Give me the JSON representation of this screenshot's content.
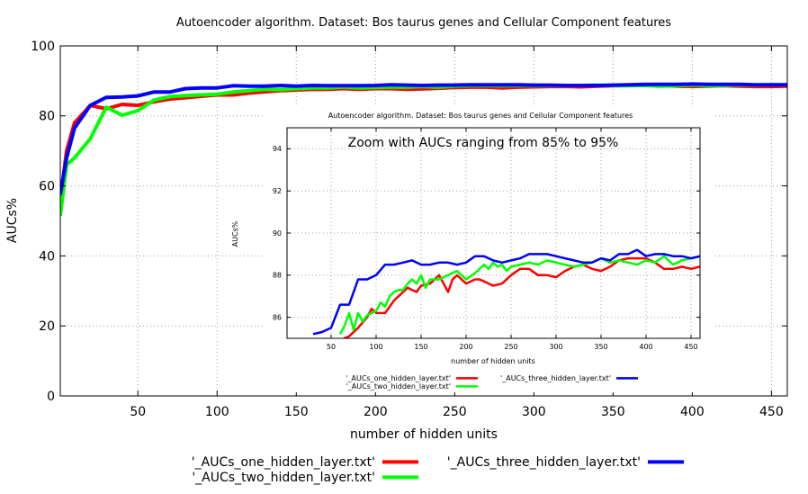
{
  "chart_data": [
    {
      "type": "line",
      "title": "Autoencoder algorithm. Dataset: Bos taurus genes and Cellular Component features",
      "xlabel": "number of hidden units",
      "ylabel": "AUCs%",
      "xlim": [
        1,
        460
      ],
      "ylim": [
        0,
        100
      ],
      "xticks": [
        50,
        100,
        150,
        200,
        250,
        300,
        350,
        400,
        450
      ],
      "yticks": [
        0,
        20,
        40,
        60,
        80,
        100
      ],
      "grid": true,
      "legend_position": "bottom",
      "x": [
        1,
        5,
        10,
        20,
        30,
        40,
        50,
        60,
        70,
        80,
        90,
        100,
        110,
        120,
        130,
        140,
        150,
        160,
        170,
        180,
        190,
        200,
        210,
        220,
        230,
        240,
        250,
        260,
        270,
        280,
        290,
        300,
        310,
        320,
        330,
        340,
        350,
        360,
        370,
        380,
        390,
        400,
        410,
        420,
        430,
        440,
        450,
        460
      ],
      "series": [
        {
          "name": "'_AUCs_one_hidden_layer.txt'",
          "color": "#ff0000",
          "values": [
            56,
            70,
            78,
            83,
            82,
            83.3,
            83,
            84,
            84.8,
            85.2,
            85.6,
            86,
            86,
            86.5,
            86.9,
            87.2,
            87.4,
            87.6,
            87.6,
            87.8,
            87.6,
            87.8,
            87.8,
            87.6,
            87.7,
            87.9,
            88.1,
            88.2,
            88.2,
            88.0,
            88.2,
            88.3,
            88.4,
            88.4,
            88.3,
            88.5,
            88.6,
            88.7,
            88.8,
            88.7,
            88.5,
            88.4,
            88.5,
            88.6,
            88.5,
            88.4,
            88.4,
            88.5
          ]
        },
        {
          "name": "'_AUCs_two_hidden_layer.txt'",
          "color": "#00ff00",
          "values": [
            51.5,
            66,
            68,
            73.5,
            82.5,
            80.2,
            81.5,
            84.5,
            85.5,
            85.8,
            86.0,
            86.2,
            86.8,
            87.2,
            87.6,
            87.5,
            87.8,
            88.0,
            88.0,
            88.2,
            88.0,
            88.1,
            88.2,
            88.2,
            88.4,
            88.2,
            88.5,
            88.6,
            88.7,
            88.6,
            88.7,
            88.6,
            88.7,
            88.6,
            88.7,
            88.8,
            88.7,
            88.6,
            88.7,
            88.5,
            88.6,
            88.8,
            88.6,
            88.7,
            88.9,
            88.8,
            88.9,
            88.9
          ]
        },
        {
          "name": "'_AUCs_three_hidden_layer.txt'",
          "color": "#0000ff",
          "values": [
            57.5,
            68,
            76.5,
            83,
            85.3,
            85.4,
            85.7,
            86.8,
            86.8,
            87.8,
            88.0,
            88.0,
            88.6,
            88.5,
            88.5,
            88.7,
            88.5,
            88.7,
            88.6,
            88.6,
            88.6,
            88.7,
            88.9,
            88.8,
            88.7,
            88.8,
            88.8,
            88.9,
            88.9,
            88.9,
            88.9,
            88.8,
            88.8,
            88.7,
            88.7,
            88.7,
            88.8,
            88.9,
            89.0,
            89.0,
            89.0,
            89.1,
            89.0,
            89.0,
            89.0,
            88.9,
            88.9,
            88.9
          ]
        }
      ]
    },
    {
      "type": "line",
      "title": "Autoencoder algorithm. Dataset: Bos taurus genes and Cellular Component features",
      "annotation": "Zoom with AUCs ranging from 85% to 95%",
      "xlabel": "number of hidden units",
      "ylabel": "AUCs%",
      "xlim": [
        1,
        460
      ],
      "ylim": [
        85,
        95
      ],
      "xticks": [
        50,
        100,
        150,
        200,
        250,
        300,
        350,
        400,
        450
      ],
      "yticks": [
        86,
        88,
        90,
        92,
        94
      ],
      "grid": true,
      "legend_position": "bottom",
      "series": [
        {
          "name": "'_AUCs_one_hidden_layer.txt'",
          "color": "#ff0000",
          "x": [
            60,
            70,
            80,
            90,
            95,
            100,
            105,
            110,
            115,
            120,
            125,
            130,
            135,
            140,
            145,
            150,
            160,
            170,
            175,
            180,
            185,
            190,
            200,
            210,
            215,
            220,
            230,
            240,
            250,
            260,
            270,
            280,
            290,
            300,
            310,
            320,
            330,
            340,
            350,
            360,
            370,
            380,
            390,
            400,
            410,
            420,
            430,
            440,
            450,
            460
          ],
          "values": [
            84.9,
            85.1,
            85.5,
            86,
            86.4,
            86.2,
            86.2,
            86.2,
            86.5,
            86.8,
            87,
            87.2,
            87.4,
            87.3,
            87.2,
            87.5,
            87.6,
            88,
            87.6,
            87.2,
            87.8,
            88,
            87.6,
            87.8,
            87.8,
            87.7,
            87.5,
            87.6,
            88,
            88.3,
            88.3,
            88,
            88,
            87.9,
            88.2,
            88.4,
            88.5,
            88.3,
            88.2,
            88.4,
            88.7,
            88.8,
            88.8,
            88.8,
            88.6,
            88.3,
            88.3,
            88.4,
            88.3,
            88.4
          ]
        },
        {
          "name": "'_AUCs_two_hidden_layer.txt'",
          "color": "#00ff00",
          "values_x": [
            60,
            65,
            70,
            75,
            80,
            85,
            90,
            95,
            100,
            105,
            110,
            115,
            120,
            125,
            130,
            135,
            140,
            145,
            150,
            155,
            160,
            170,
            180,
            190,
            200,
            210,
            220,
            225,
            230,
            235,
            240,
            245,
            250,
            260,
            270,
            280,
            290,
            300,
            310,
            320,
            330,
            340,
            350,
            360,
            370,
            380,
            390,
            400,
            410,
            420,
            430,
            440,
            450,
            460
          ],
          "values": [
            85.2,
            85.6,
            86.2,
            85.4,
            86.2,
            85.8,
            86.1,
            86.2,
            86.3,
            86.7,
            86.5,
            87,
            87.2,
            87.3,
            87.3,
            87.6,
            87.8,
            87.6,
            88,
            87.4,
            87.8,
            87.8,
            88,
            88.2,
            87.8,
            88.1,
            88.5,
            88.3,
            88.6,
            88.4,
            88.5,
            88.2,
            88.4,
            88.5,
            88.6,
            88.5,
            88.7,
            88.6,
            88.5,
            88.4,
            88.5,
            88.6,
            88.8,
            88.6,
            88.7,
            88.6,
            88.5,
            88.7,
            88.6,
            88.9,
            88.5,
            88.7,
            88.8,
            88.9
          ]
        },
        {
          "name": "'_AUCs_three_hidden_layer.txt'",
          "color": "#0000ff",
          "values_x": [
            30,
            40,
            50,
            60,
            70,
            80,
            90,
            100,
            110,
            120,
            130,
            140,
            150,
            160,
            170,
            180,
            190,
            200,
            210,
            220,
            230,
            240,
            250,
            260,
            270,
            280,
            290,
            300,
            310,
            320,
            330,
            340,
            350,
            360,
            370,
            380,
            390,
            400,
            410,
            420,
            430,
            440,
            450,
            460
          ],
          "values": [
            85.2,
            85.3,
            85.5,
            86.6,
            86.6,
            87.8,
            87.8,
            88.0,
            88.5,
            88.5,
            88.6,
            88.7,
            88.5,
            88.5,
            88.6,
            88.6,
            88.5,
            88.6,
            88.9,
            88.9,
            88.7,
            88.6,
            88.7,
            88.8,
            89.0,
            89.0,
            89.0,
            88.9,
            88.8,
            88.7,
            88.6,
            88.6,
            88.8,
            88.7,
            89.0,
            89.0,
            89.2,
            88.9,
            89.0,
            89.0,
            88.9,
            88.9,
            88.8,
            88.9
          ]
        }
      ]
    }
  ]
}
